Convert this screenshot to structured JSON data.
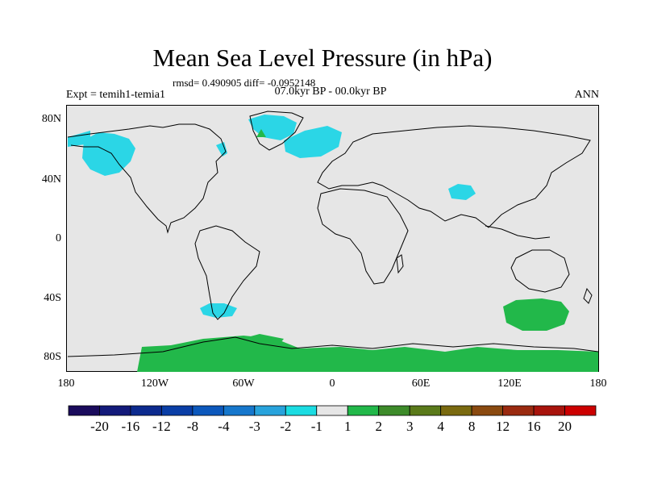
{
  "title": "Mean Sea Level Pressure (in hPa)",
  "stats_line": "rmsd= 0.490905 diff= -0.0952148",
  "period": "07.0kyr BP - 00.0kyr BP",
  "experiment": "Expt = temih1-temia1",
  "season": "ANN",
  "y_axis_labels": [
    "80N",
    "40N",
    "0",
    "40S",
    "80S"
  ],
  "x_axis_labels": [
    "180",
    "120W",
    "60W",
    "0",
    "60E",
    "120E",
    "180"
  ],
  "colorbar": {
    "labels": [
      "-20",
      "-16",
      "-12",
      "-8",
      "-4",
      "-3",
      "-2",
      "-1",
      "1",
      "2",
      "3",
      "4",
      "8",
      "12",
      "16",
      "20"
    ],
    "colors": [
      "#1a0b5c",
      "#131a7a",
      "#0c2a8e",
      "#0a3ea6",
      "#0c58bc",
      "#1677cc",
      "#28a3dc",
      "#1bdce2",
      "#e6e6e6",
      "#22b84a",
      "#3d8b2a",
      "#5a7a1a",
      "#7a6a10",
      "#8a4a10",
      "#9a2a10",
      "#a8140c",
      "#cc0000"
    ]
  },
  "colors": {
    "background": "#e6e6e6",
    "negative_anomaly": "#2bd6e6",
    "positive_anomaly": "#22b84a",
    "coastline": "#000000"
  }
}
